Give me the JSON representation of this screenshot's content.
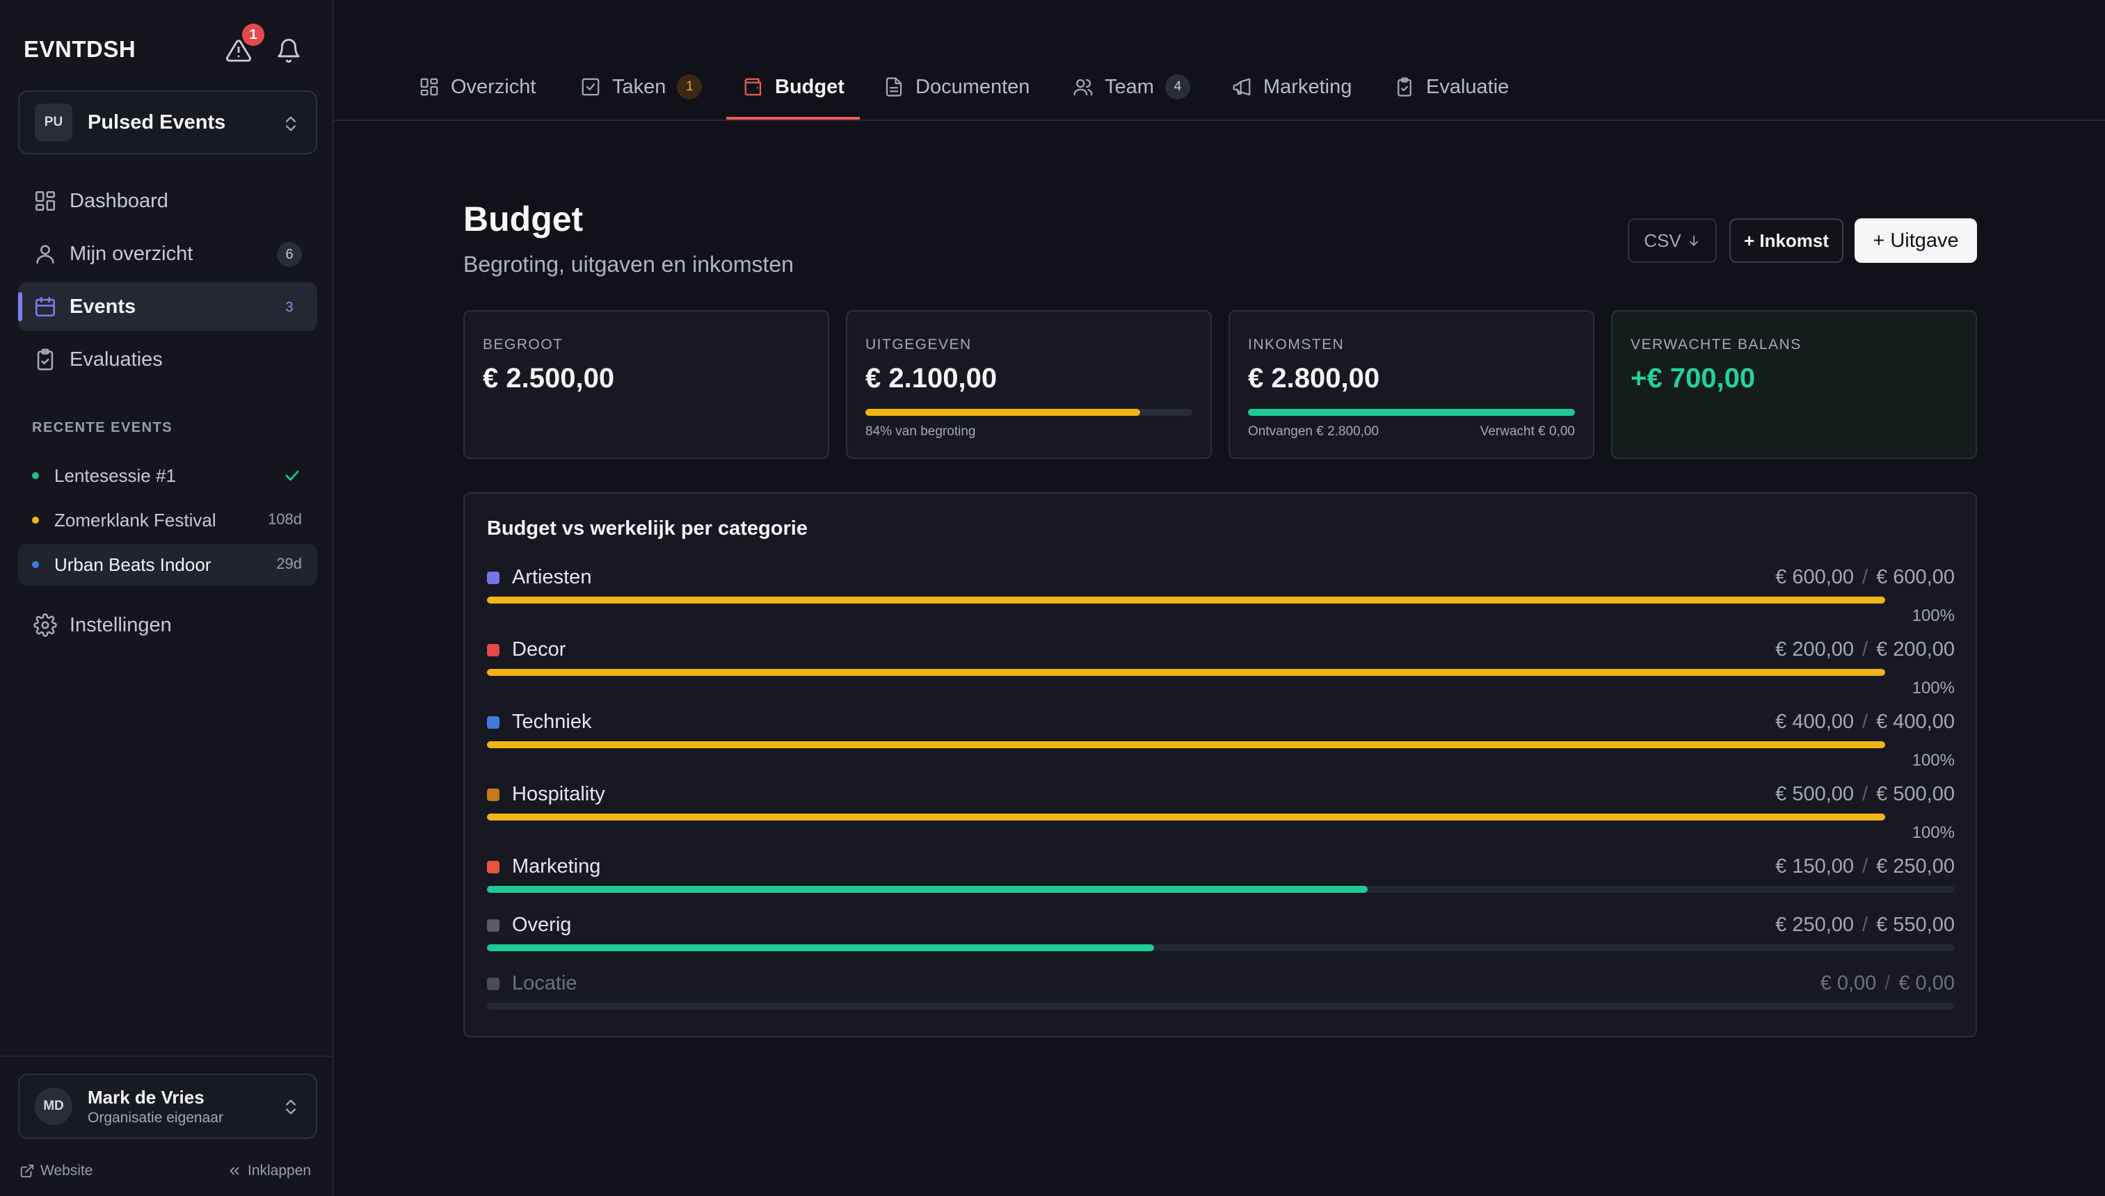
{
  "app": {
    "logo": "EVNTDSH",
    "alert_count": "1"
  },
  "org": {
    "initials": "PU",
    "name": "Pulsed Events"
  },
  "nav": {
    "dashboard": "Dashboard",
    "overview": "Mijn overzicht",
    "overview_count": "6",
    "events": "Events",
    "events_count": "3",
    "evaluations": "Evaluaties",
    "settings": "Instellingen"
  },
  "recent": {
    "title": "RECENTE EVENTS",
    "items": [
      {
        "name": "Lentesessie #1",
        "meta": "",
        "color": "#1fbf88"
      },
      {
        "name": "Zomerklank Festival",
        "meta": "108d",
        "color": "#f2b416"
      },
      {
        "name": "Urban Beats Indoor",
        "meta": "29d",
        "color": "#3d7be0"
      }
    ]
  },
  "user": {
    "initials": "MD",
    "name": "Mark de Vries",
    "role": "Organisatie eigenaar"
  },
  "footer": {
    "website": "Website",
    "collapse": "Inklappen"
  },
  "tabs": [
    {
      "label": "Overzicht",
      "icon": "grid-icon"
    },
    {
      "label": "Taken",
      "badge": "1",
      "icon": "check-square-icon"
    },
    {
      "label": "Budget",
      "icon": "wallet-icon",
      "active": true
    },
    {
      "label": "Documenten",
      "icon": "file-icon"
    },
    {
      "label": "Team",
      "badge": "4",
      "icon": "users-icon"
    },
    {
      "label": "Marketing",
      "icon": "megaphone-icon"
    },
    {
      "label": "Evaluatie",
      "icon": "clipboard-check-icon"
    }
  ],
  "page": {
    "title": "Budget",
    "subtitle": "Begroting, uitgaven en inkomsten"
  },
  "actions": {
    "csv": "CSV",
    "income": "+ Inkomst",
    "expense": "+ Uitgave"
  },
  "stats": {
    "budgeted": {
      "label": "BEGROOT",
      "value": "€ 2.500,00"
    },
    "spent": {
      "label": "UITGEGEVEN",
      "value": "€ 2.100,00",
      "progress": 0.84,
      "note": "84% van begroting",
      "color": "#f2b416"
    },
    "income": {
      "label": "INKOMSTEN",
      "value": "€ 2.800,00",
      "progress": 1.0,
      "received": "Ontvangen € 2.800,00",
      "expected": "Verwacht € 0,00",
      "color": "#1fca94"
    },
    "balance": {
      "label": "VERWACHTE BALANS",
      "value": "+€ 700,00"
    }
  },
  "categories": {
    "title": "Budget vs werkelijk per categorie",
    "items": [
      {
        "name": "Artiesten",
        "color": "#7376e8",
        "actual": "€ 600,00",
        "budget": "€ 600,00",
        "progress": 1.0,
        "bar_color": "#f2b416",
        "pct": "100%"
      },
      {
        "name": "Decor",
        "color": "#e5484d",
        "actual": "€ 200,00",
        "budget": "€ 200,00",
        "progress": 1.0,
        "bar_color": "#f2b416",
        "pct": "100%"
      },
      {
        "name": "Techniek",
        "color": "#3d7be0",
        "actual": "€ 400,00",
        "budget": "€ 400,00",
        "progress": 1.0,
        "bar_color": "#f2b416",
        "pct": "100%"
      },
      {
        "name": "Hospitality",
        "color": "#c7791b",
        "actual": "€ 500,00",
        "budget": "€ 500,00",
        "progress": 1.0,
        "bar_color": "#f2b416",
        "pct": "100%"
      },
      {
        "name": "Marketing",
        "color": "#e4553c",
        "actual": "€ 150,00",
        "budget": "€ 250,00",
        "progress": 0.6,
        "bar_color": "#1fca94",
        "pct": ""
      },
      {
        "name": "Overig",
        "color": "#595c67",
        "actual": "€ 250,00",
        "budget": "€ 550,00",
        "progress": 0.4545,
        "bar_color": "#1fca94",
        "pct": ""
      },
      {
        "name": "Locatie",
        "color": "#4a4d58",
        "actual": "€ 0,00",
        "budget": "€ 0,00",
        "progress": 0,
        "bar_color": "#1fca94",
        "pct": "",
        "muted": true
      }
    ]
  }
}
